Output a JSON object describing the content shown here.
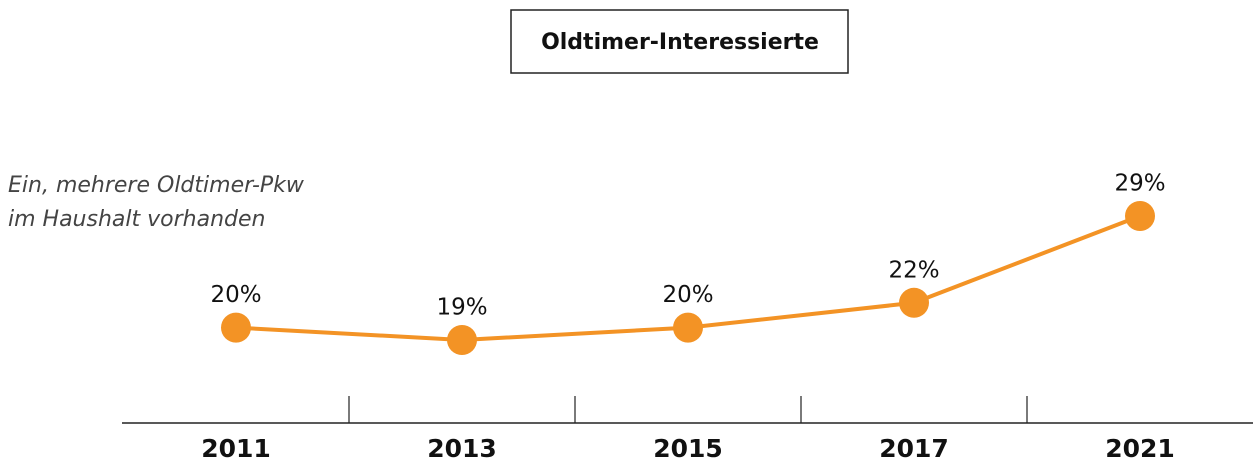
{
  "chart_data": {
    "type": "line",
    "title": "Oldtimer-Interessierte",
    "annotation": [
      "Ein, mehrere Oldtimer-Pkw",
      "im Haushalt vorhanden"
    ],
    "categories": [
      "2011",
      "2013",
      "2015",
      "2017",
      "2021"
    ],
    "values": [
      20,
      19,
      20,
      22,
      29
    ],
    "value_labels": [
      "20%",
      "19%",
      "20%",
      "22%",
      "29%"
    ],
    "color": "#f39325"
  }
}
